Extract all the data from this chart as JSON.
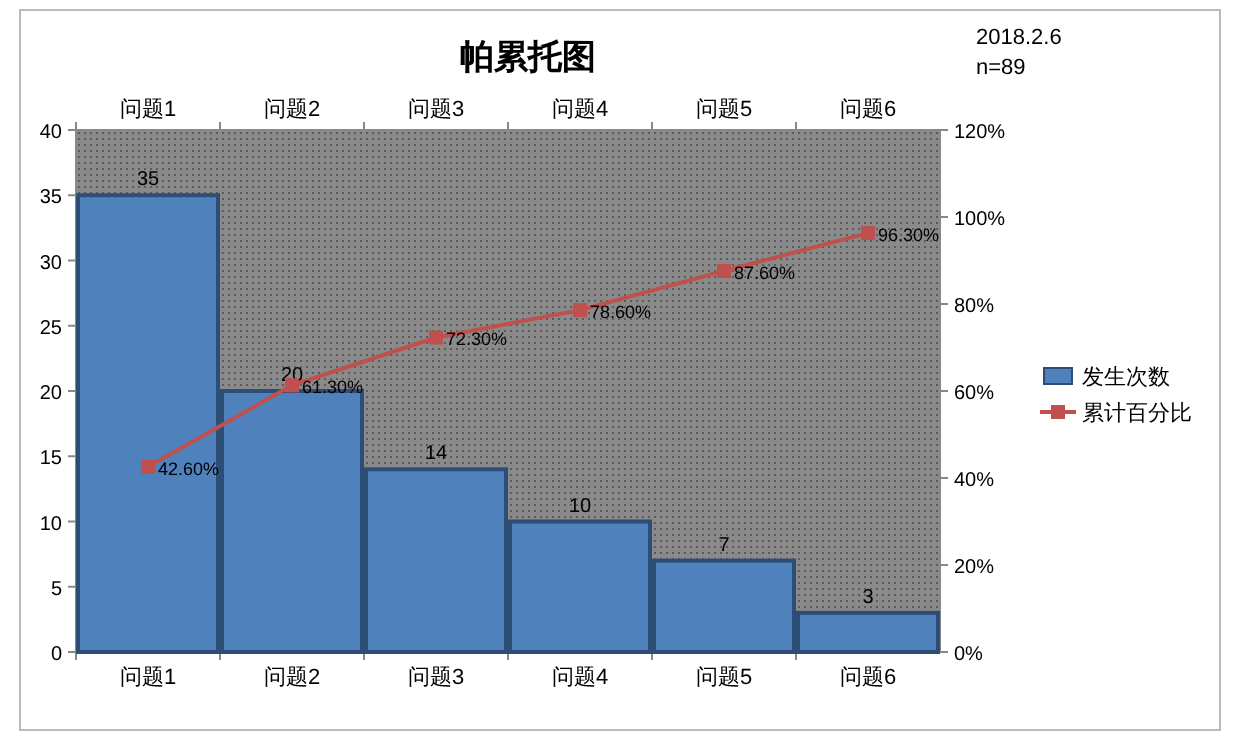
{
  "chart_data": {
    "type": "bar",
    "title": "帕累托图",
    "annotations": [
      "2018.2.6",
      "n=89"
    ],
    "categories": [
      "问题1",
      "问题2",
      "问题3",
      "问题4",
      "问题5",
      "问题6"
    ],
    "series": [
      {
        "name": "发生次数",
        "color": "#4f81bd",
        "values": [
          35,
          20,
          14,
          10,
          7,
          3
        ],
        "value_labels": [
          "35",
          "20",
          "14",
          "10",
          "7",
          "3"
        ]
      },
      {
        "name": "累计百分比",
        "type": "line",
        "axis": "y2",
        "color": "#c0504d",
        "marker": "square",
        "values": [
          42.6,
          61.3,
          72.3,
          78.6,
          87.6,
          96.3
        ],
        "value_labels": [
          "42.60%",
          "61.30%",
          "72.30%",
          "78.60%",
          "87.60%",
          "96.30%"
        ]
      }
    ],
    "ylim": [
      0,
      40
    ],
    "yticks": [
      0,
      5,
      10,
      15,
      20,
      25,
      30,
      35,
      40
    ],
    "y2lim": [
      0,
      120
    ],
    "y2ticks": [
      {
        "value": 0,
        "label": "0%"
      },
      {
        "value": 20,
        "label": "20%"
      },
      {
        "value": 40,
        "label": "40%"
      },
      {
        "value": 60,
        "label": "60%"
      },
      {
        "value": 80,
        "label": "80%"
      },
      {
        "value": 100,
        "label": "100%"
      },
      {
        "value": 120,
        "label": "120%"
      }
    ],
    "legend": "right"
  }
}
